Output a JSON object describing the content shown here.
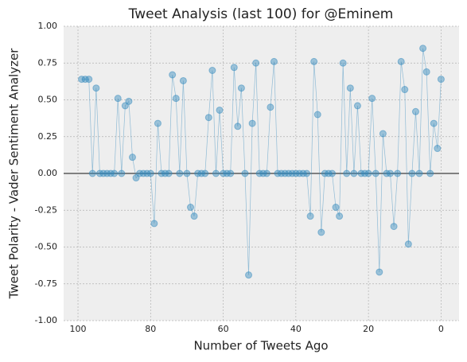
{
  "chart_data": {
    "type": "line",
    "title": "Tweet Analysis (last 100) for @Eminem",
    "xlabel": "Number of Tweets Ago",
    "ylabel": "Tweet Polarity - Vader Sentiment Analyzer",
    "x": [
      99,
      98,
      97,
      96,
      95,
      94,
      93,
      92,
      91,
      90,
      89,
      88,
      87,
      86,
      85,
      84,
      83,
      82,
      81,
      80,
      79,
      78,
      77,
      76,
      75,
      74,
      73,
      72,
      71,
      70,
      69,
      68,
      67,
      66,
      65,
      64,
      63,
      62,
      61,
      60,
      59,
      58,
      57,
      56,
      55,
      54,
      53,
      52,
      51,
      50,
      49,
      48,
      47,
      46,
      45,
      44,
      43,
      42,
      41,
      40,
      39,
      38,
      37,
      36,
      35,
      34,
      33,
      32,
      31,
      30,
      29,
      28,
      27,
      26,
      25,
      24,
      23,
      22,
      21,
      20,
      19,
      18,
      17,
      16,
      15,
      14,
      13,
      12,
      11,
      10,
      9,
      8,
      7,
      6,
      5,
      4,
      3,
      2,
      1,
      0
    ],
    "series": [
      {
        "color": "#348abd",
        "values": [
          0.64,
          0.64,
          0.64,
          0,
          0.58,
          0,
          0,
          0,
          0,
          0,
          0.51,
          0,
          0.46,
          0.49,
          0.11,
          -0.03,
          0,
          0,
          0,
          0,
          -0.34,
          0.34,
          0,
          0,
          0,
          0.67,
          0.51,
          0,
          0.63,
          0,
          -0.23,
          -0.29,
          0,
          0,
          0,
          0.38,
          0.7,
          0,
          0.43,
          0,
          0,
          0,
          0.72,
          0.32,
          0.58,
          0,
          -0.69,
          0.34,
          0.75,
          0,
          0,
          0,
          0.45,
          0.76,
          0,
          0,
          0,
          0,
          0,
          0,
          0,
          0,
          0,
          -0.29,
          0.76,
          0.4,
          -0.4,
          0,
          0,
          0,
          -0.23,
          -0.29,
          0.75,
          0,
          0.58,
          0,
          0.46,
          0,
          0,
          0,
          0.51,
          0,
          -0.67,
          0.27,
          0,
          0,
          -0.36,
          0,
          0.76,
          0.57,
          -0.48,
          0,
          0.42,
          0,
          0.85,
          0.69,
          0,
          0.34,
          0.17,
          0.64
        ]
      }
    ],
    "xlim": [
      103.95,
      -4.95
    ],
    "xticks": [
      100,
      80,
      60,
      40,
      20,
      0
    ],
    "ylim": [
      -1,
      1
    ],
    "yticks": [
      {
        "value": -1,
        "label": "-1.00"
      },
      -0.75,
      {
        "value": -0.5,
        "label": "-0.50"
      },
      -0.25,
      {
        "value": 0,
        "label": "0.00"
      },
      0.25,
      {
        "value": 0.5,
        "label": "0.50"
      },
      0.75,
      {
        "value": 1,
        "label": "1.00"
      }
    ],
    "reference_line": 0,
    "grid": true
  }
}
